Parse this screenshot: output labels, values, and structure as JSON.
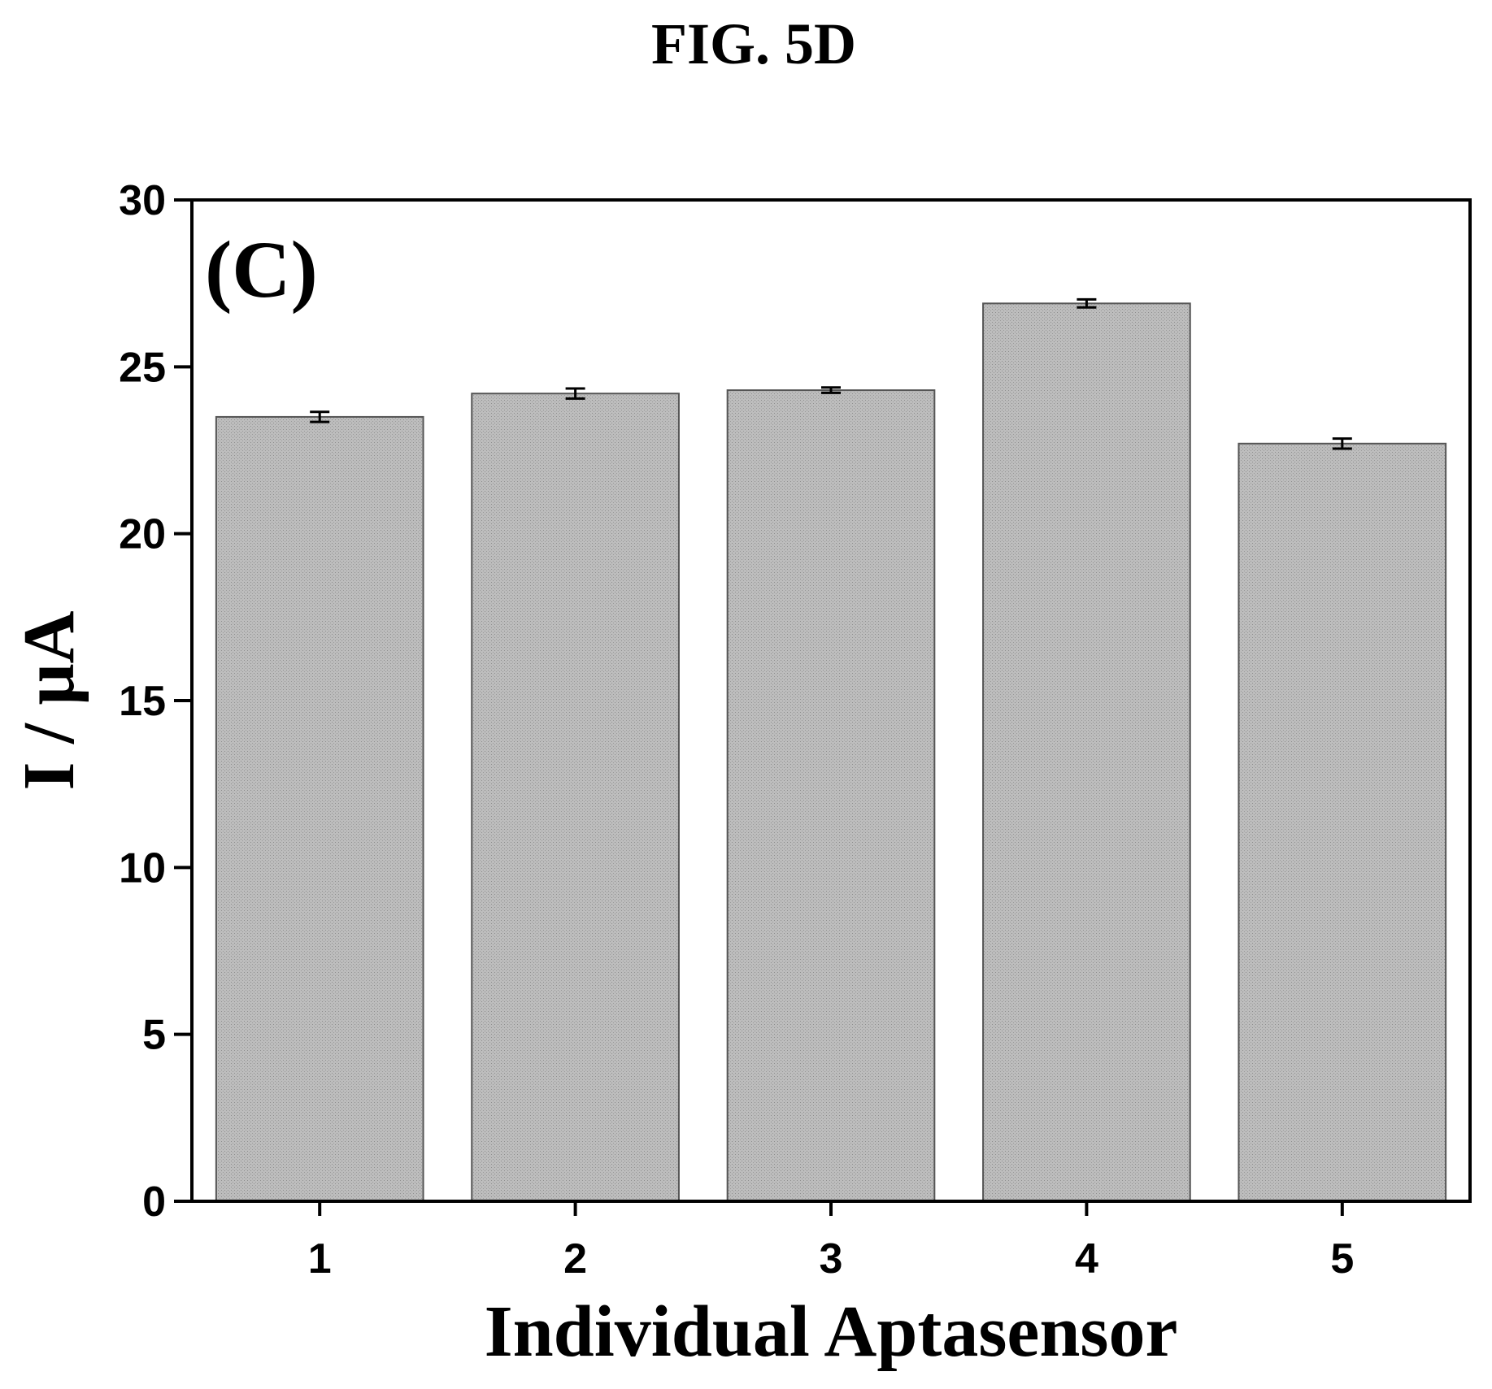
{
  "figure": {
    "title": "FIG. 5D"
  },
  "chart_data": {
    "type": "bar",
    "panel_label": "(C)",
    "categories": [
      "1",
      "2",
      "3",
      "4",
      "5"
    ],
    "values": [
      23.5,
      24.2,
      24.3,
      26.9,
      22.7
    ],
    "errors": [
      0.15,
      0.15,
      0.08,
      0.12,
      0.15
    ],
    "xlabel": "Individual Aptasensor",
    "ylabel": "I / μA",
    "ylim": [
      0,
      30
    ],
    "yticks": [
      "0",
      "5",
      "10",
      "15",
      "20",
      "25",
      "30"
    ],
    "grid": false,
    "bar_color": "#b8b8b8"
  }
}
